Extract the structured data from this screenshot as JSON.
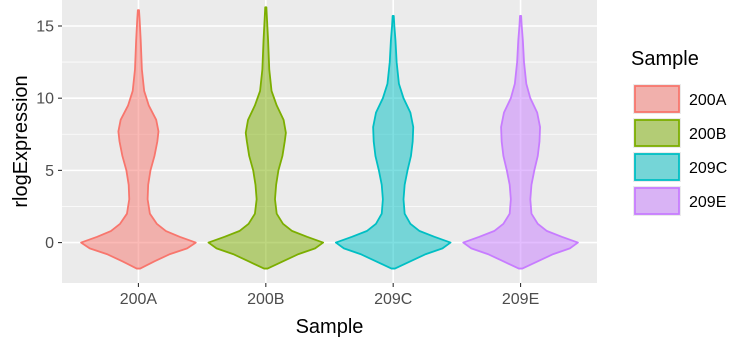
{
  "chart_data": {
    "type": "violin",
    "xlabel": "Sample",
    "ylabel": "rlogExpression",
    "categories": [
      "200A",
      "200B",
      "209C",
      "209E"
    ],
    "ylim": [
      -2.8,
      16.8
    ],
    "yticks": [
      0,
      5,
      10,
      15
    ],
    "grid": true,
    "legend": {
      "title": "Sample",
      "position": "right",
      "entries": [
        "200A",
        "200B",
        "209C",
        "209E"
      ]
    },
    "colors": {
      "200A": "#F8766D",
      "200B": "#7CAE00",
      "209C": "#00BFC4",
      "209E": "#C77CFF"
    },
    "series": [
      {
        "name": "200A",
        "min": -1.8,
        "max": 16.1,
        "density": [
          [
            -1.8,
            0.03
          ],
          [
            -1.3,
            0.28
          ],
          [
            -0.8,
            0.55
          ],
          [
            -0.4,
            0.85
          ],
          [
            0,
            1.0
          ],
          [
            0.4,
            0.72
          ],
          [
            0.8,
            0.48
          ],
          [
            1.3,
            0.32
          ],
          [
            2,
            0.2
          ],
          [
            3,
            0.16
          ],
          [
            4,
            0.17
          ],
          [
            5,
            0.21
          ],
          [
            6,
            0.28
          ],
          [
            7,
            0.33
          ],
          [
            7.7,
            0.35
          ],
          [
            8.5,
            0.31
          ],
          [
            9.5,
            0.18
          ],
          [
            10.5,
            0.1
          ],
          [
            12,
            0.06
          ],
          [
            14,
            0.04
          ],
          [
            15.5,
            0.02
          ],
          [
            16.1,
            0.01
          ]
        ]
      },
      {
        "name": "200B",
        "min": -1.8,
        "max": 16.3,
        "density": [
          [
            -1.8,
            0.03
          ],
          [
            -1.3,
            0.3
          ],
          [
            -0.8,
            0.57
          ],
          [
            -0.4,
            0.86
          ],
          [
            0,
            1.0
          ],
          [
            0.4,
            0.72
          ],
          [
            0.8,
            0.46
          ],
          [
            1.3,
            0.3
          ],
          [
            2,
            0.19
          ],
          [
            3,
            0.16
          ],
          [
            4,
            0.18
          ],
          [
            5,
            0.22
          ],
          [
            6,
            0.29
          ],
          [
            7,
            0.33
          ],
          [
            7.6,
            0.35
          ],
          [
            8.5,
            0.31
          ],
          [
            9.5,
            0.19
          ],
          [
            10.5,
            0.1
          ],
          [
            12,
            0.06
          ],
          [
            14,
            0.04
          ],
          [
            15.5,
            0.02
          ],
          [
            16.3,
            0.01
          ]
        ]
      },
      {
        "name": "209C",
        "min": -1.8,
        "max": 15.7,
        "density": [
          [
            -1.8,
            0.03
          ],
          [
            -1.3,
            0.3
          ],
          [
            -0.8,
            0.57
          ],
          [
            -0.4,
            0.86
          ],
          [
            0,
            1.0
          ],
          [
            0.4,
            0.72
          ],
          [
            0.8,
            0.46
          ],
          [
            1.3,
            0.3
          ],
          [
            2,
            0.2
          ],
          [
            3,
            0.18
          ],
          [
            4,
            0.2
          ],
          [
            5,
            0.25
          ],
          [
            6,
            0.31
          ],
          [
            7,
            0.34
          ],
          [
            8,
            0.35
          ],
          [
            9,
            0.3
          ],
          [
            10,
            0.18
          ],
          [
            11,
            0.1
          ],
          [
            12.5,
            0.06
          ],
          [
            14,
            0.04
          ],
          [
            15,
            0.02
          ],
          [
            15.7,
            0.01
          ]
        ]
      },
      {
        "name": "209E",
        "min": -1.8,
        "max": 15.7,
        "density": [
          [
            -1.8,
            0.03
          ],
          [
            -1.3,
            0.3
          ],
          [
            -0.8,
            0.57
          ],
          [
            -0.4,
            0.86
          ],
          [
            0,
            1.0
          ],
          [
            0.4,
            0.72
          ],
          [
            0.8,
            0.46
          ],
          [
            1.3,
            0.3
          ],
          [
            2,
            0.19
          ],
          [
            3,
            0.17
          ],
          [
            4,
            0.19
          ],
          [
            5,
            0.24
          ],
          [
            6,
            0.3
          ],
          [
            7,
            0.33
          ],
          [
            8,
            0.34
          ],
          [
            9,
            0.29
          ],
          [
            10,
            0.17
          ],
          [
            11,
            0.1
          ],
          [
            12.5,
            0.06
          ],
          [
            14,
            0.04
          ],
          [
            15,
            0.02
          ],
          [
            15.7,
            0.01
          ]
        ]
      }
    ]
  }
}
